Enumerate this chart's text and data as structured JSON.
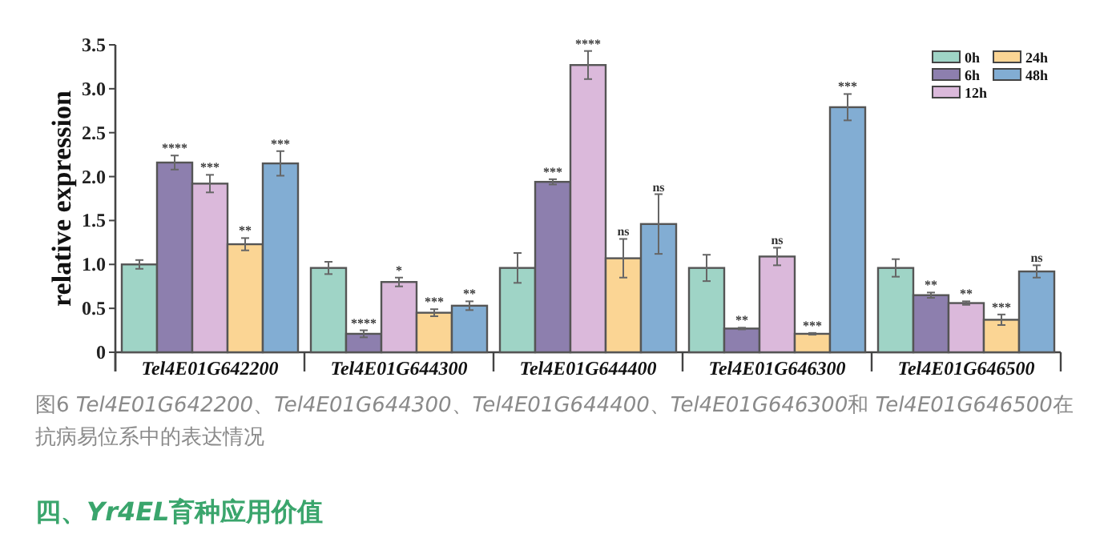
{
  "chart_data": {
    "type": "bar",
    "ylabel": "relative expression",
    "categories": [
      "Tel4E01G642200",
      "Tel4E01G644300",
      "Tel4E01G644400",
      "Tel4E01G646300",
      "Tel4E01G646500"
    ],
    "series": [
      {
        "name": "0h",
        "color": "#9fd4c6",
        "values": [
          1.0,
          0.96,
          0.96,
          0.96,
          0.96
        ],
        "errors": [
          0.05,
          0.07,
          0.17,
          0.15,
          0.1
        ],
        "value_labels": [
          null,
          null,
          null,
          null,
          null
        ]
      },
      {
        "name": "6h",
        "color": "#8d7fae",
        "values": [
          2.16,
          0.21,
          1.94,
          0.27,
          0.65
        ],
        "errors": [
          0.08,
          0.04,
          0.03,
          0.01,
          0.03
        ],
        "value_labels": [
          "****",
          "****",
          "***",
          "**",
          "**"
        ]
      },
      {
        "name": "12h",
        "color": "#dbb9db",
        "values": [
          1.92,
          0.8,
          3.27,
          1.09,
          0.56
        ],
        "errors": [
          0.1,
          0.05,
          0.16,
          0.1,
          0.02
        ],
        "value_labels": [
          "***",
          "*",
          "****",
          "ns",
          "**"
        ]
      },
      {
        "name": "24h",
        "color": "#fbd594",
        "values": [
          1.23,
          0.45,
          1.07,
          0.21,
          0.37
        ],
        "errors": [
          0.07,
          0.04,
          0.22,
          0.01,
          0.06
        ],
        "value_labels": [
          "**",
          "***",
          "ns",
          "***",
          "***"
        ]
      },
      {
        "name": "48h",
        "color": "#82add3",
        "values": [
          2.15,
          0.53,
          1.46,
          2.79,
          0.92
        ],
        "errors": [
          0.14,
          0.05,
          0.34,
          0.15,
          0.07
        ],
        "value_labels": [
          "***",
          "**",
          "ns",
          "***",
          "ns"
        ]
      }
    ],
    "ylim": [
      0,
      3.5
    ],
    "yticks": [
      0,
      0.5,
      {
        "value": 1,
        "label": "1.0"
      },
      1.5,
      {
        "value": 2,
        "label": "2.0"
      },
      2.5,
      {
        "value": 3,
        "label": "3.0"
      },
      3.5
    ],
    "legend": "top right",
    "grid": false,
    "annotations": [
      "图6 Tel4E01G642200、Tel4E01G644300、Tel4E01G644400、Tel4E01G646300和 Tel4E01G646500在抗病易位系中的表达情况",
      "四、Yr4EL育种应用价值"
    ]
  }
}
